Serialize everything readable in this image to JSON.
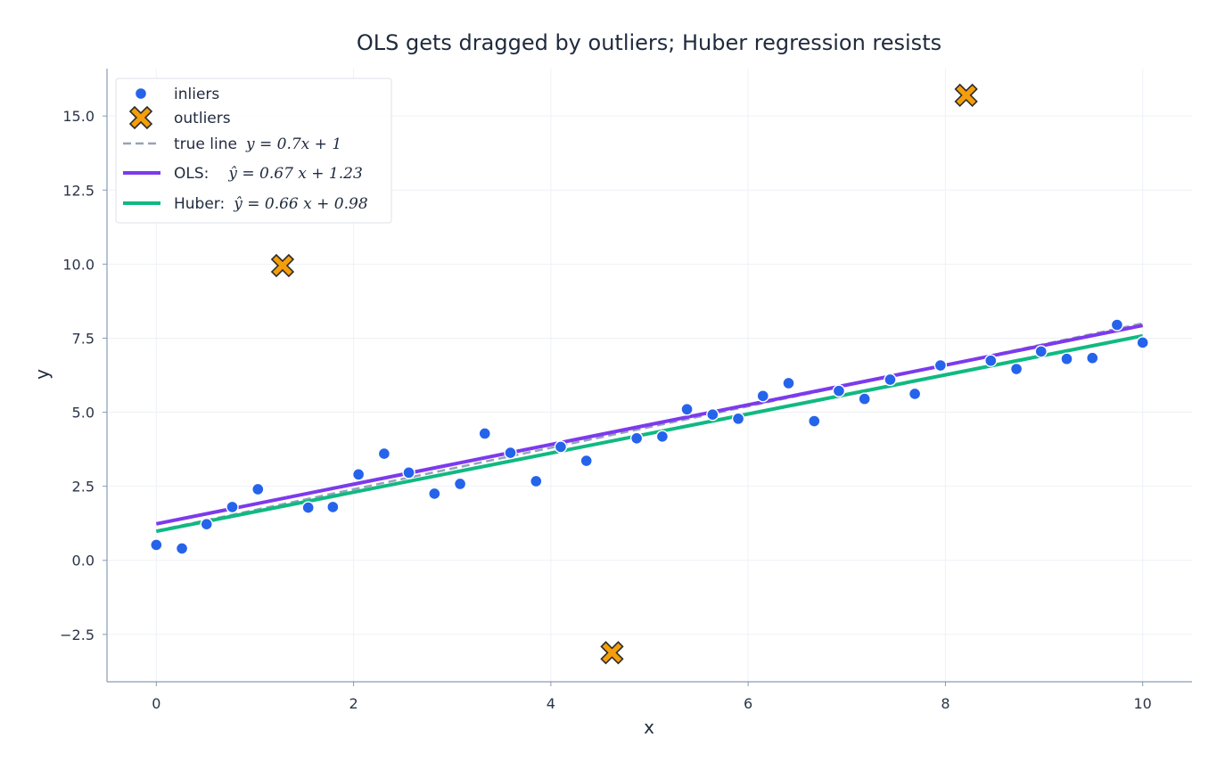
{
  "chart_data": {
    "type": "scatter",
    "title": "OLS gets dragged by outliers; Huber regression resists",
    "xlabel": "x",
    "ylabel": "y",
    "xlim": [
      -0.5,
      10.5
    ],
    "ylim": [
      -4.1,
      16.6
    ],
    "xticks": [
      0,
      2,
      4,
      6,
      8,
      10
    ],
    "xtick_labels": [
      "0",
      "2",
      "4",
      "6",
      "8",
      "10"
    ],
    "yticks": [
      -2.5,
      0.0,
      2.5,
      5.0,
      7.5,
      10.0,
      12.5,
      15.0
    ],
    "ytick_labels": [
      "−2.5",
      "0.0",
      "2.5",
      "5.0",
      "7.5",
      "10.0",
      "12.5",
      "15.0"
    ],
    "grid": true,
    "legend_position": "top-left",
    "series": [
      {
        "name": "inliers",
        "kind": "scatter",
        "marker": "circle",
        "color": "#2563eb",
        "points": [
          [
            0.0,
            0.52
          ],
          [
            0.26,
            0.4
          ],
          [
            0.51,
            1.22
          ],
          [
            0.77,
            1.8
          ],
          [
            1.03,
            2.4
          ],
          [
            1.54,
            1.78
          ],
          [
            1.79,
            1.8
          ],
          [
            2.05,
            2.9
          ],
          [
            2.31,
            3.6
          ],
          [
            2.56,
            2.96
          ],
          [
            2.82,
            2.25
          ],
          [
            3.08,
            2.58
          ],
          [
            3.33,
            4.28
          ],
          [
            3.59,
            3.63
          ],
          [
            3.85,
            2.67
          ],
          [
            4.1,
            3.83
          ],
          [
            4.36,
            3.36
          ],
          [
            4.87,
            4.12
          ],
          [
            5.13,
            4.18
          ],
          [
            5.38,
            5.1
          ],
          [
            5.64,
            4.92
          ],
          [
            5.9,
            4.78
          ],
          [
            6.15,
            5.55
          ],
          [
            6.41,
            5.98
          ],
          [
            6.67,
            4.7
          ],
          [
            6.92,
            5.72
          ],
          [
            7.18,
            5.45
          ],
          [
            7.44,
            6.1
          ],
          [
            7.69,
            5.62
          ],
          [
            7.95,
            6.58
          ],
          [
            8.46,
            6.74
          ],
          [
            8.72,
            6.46
          ],
          [
            8.97,
            7.05
          ],
          [
            9.23,
            6.8
          ],
          [
            9.49,
            6.83
          ],
          [
            9.74,
            7.95
          ],
          [
            10.0,
            7.35
          ]
        ]
      },
      {
        "name": "outliers",
        "kind": "scatter",
        "marker": "x",
        "color": "#f59e0b",
        "points": [
          [
            1.28,
            9.95
          ],
          [
            4.62,
            -3.12
          ],
          [
            8.21,
            15.7
          ]
        ]
      },
      {
        "name": "true line",
        "kind": "line",
        "dash": true,
        "color": "#94a3b8",
        "slope": 0.7,
        "intercept": 1,
        "label_math": "y = 0.7x + 1"
      },
      {
        "name": "OLS:",
        "kind": "line",
        "dash": false,
        "color": "#7c3aed",
        "slope": 0.67,
        "intercept": 1.23,
        "label_math": "ŷ = 0.67 x + 1.23"
      },
      {
        "name": "Huber:",
        "kind": "line",
        "dash": false,
        "color": "#10b981",
        "slope": 0.66,
        "intercept": 0.98,
        "label_math": "ŷ = 0.66 x + 0.98"
      }
    ]
  }
}
